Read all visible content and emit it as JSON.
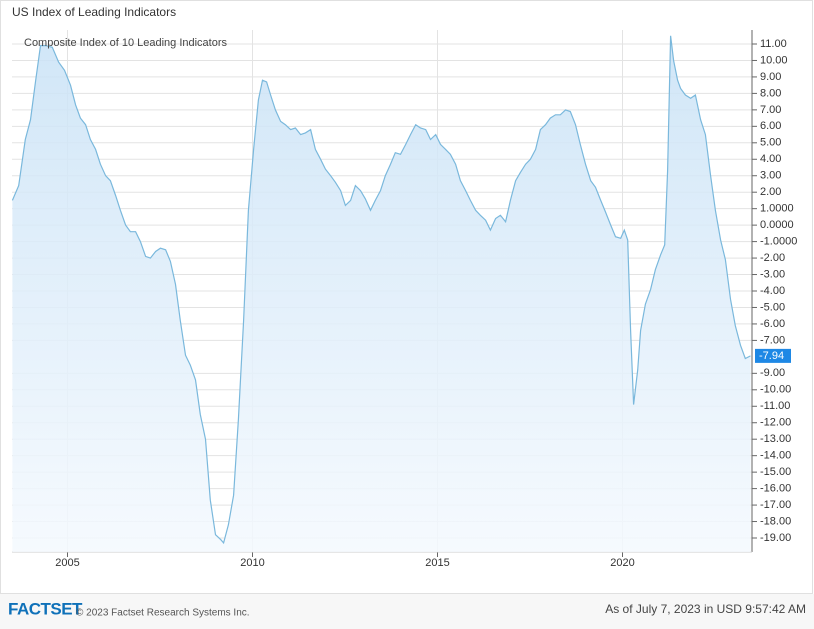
{
  "page_title": "US Index of Leading Indicators",
  "chart_data": {
    "type": "area",
    "subtitle": "Composite Index of 10 Leading Indicators",
    "x": [
      2003.51,
      2003.68,
      2003.86,
      2004.0,
      2004.14,
      2004.27,
      2004.41,
      2004.59,
      2004.76,
      2004.92,
      2005.08,
      2005.22,
      2005.35,
      2005.49,
      2005.62,
      2005.76,
      2005.89,
      2006.03,
      2006.16,
      2006.3,
      2006.43,
      2006.57,
      2006.7,
      2006.84,
      2006.97,
      2007.11,
      2007.24,
      2007.38,
      2007.51,
      2007.65,
      2007.78,
      2007.92,
      2008.05,
      2008.19,
      2008.32,
      2008.46,
      2008.59,
      2008.73,
      2008.86,
      2009.0,
      2009.14,
      2009.22,
      2009.35,
      2009.49,
      2009.62,
      2009.76,
      2009.89,
      2010.03,
      2010.16,
      2010.27,
      2010.38,
      2010.49,
      2010.62,
      2010.76,
      2010.89,
      2011.03,
      2011.16,
      2011.3,
      2011.43,
      2011.57,
      2011.7,
      2011.84,
      2011.97,
      2012.11,
      2012.24,
      2012.38,
      2012.51,
      2012.65,
      2012.78,
      2012.92,
      2013.05,
      2013.19,
      2013.32,
      2013.46,
      2013.59,
      2013.73,
      2013.86,
      2014.0,
      2014.14,
      2014.27,
      2014.41,
      2014.54,
      2014.68,
      2014.81,
      2014.95,
      2015.08,
      2015.22,
      2015.35,
      2015.49,
      2015.62,
      2015.76,
      2015.89,
      2016.03,
      2016.16,
      2016.3,
      2016.43,
      2016.57,
      2016.7,
      2016.84,
      2016.97,
      2017.11,
      2017.24,
      2017.38,
      2017.51,
      2017.65,
      2017.78,
      2017.92,
      2018.05,
      2018.19,
      2018.32,
      2018.46,
      2018.59,
      2018.73,
      2018.86,
      2019.0,
      2019.14,
      2019.27,
      2019.41,
      2019.54,
      2019.68,
      2019.81,
      2019.95,
      2020.05,
      2020.14,
      2020.22,
      2020.3,
      2020.41,
      2020.49,
      2020.62,
      2020.76,
      2020.89,
      2021.03,
      2021.14,
      2021.22,
      2021.3,
      2021.38,
      2021.49,
      2021.57,
      2021.7,
      2021.84,
      2021.97,
      2022.11,
      2022.24,
      2022.38,
      2022.51,
      2022.65,
      2022.78,
      2022.92,
      2023.05,
      2023.19,
      2023.32,
      2023.46
    ],
    "values": [
      1.5,
      2.4,
      5.2,
      6.4,
      8.8,
      10.9,
      10.9,
      10.8,
      9.9,
      9.4,
      8.5,
      7.3,
      6.5,
      6.1,
      5.2,
      4.6,
      3.7,
      3.0,
      2.7,
      1.8,
      0.9,
      0.0,
      -0.4,
      -0.4,
      -1.0,
      -1.9,
      -2.0,
      -1.6,
      -1.4,
      -1.5,
      -2.2,
      -3.6,
      -5.8,
      -7.9,
      -8.5,
      -9.4,
      -11.5,
      -13.0,
      -16.7,
      -18.8,
      -19.1,
      -19.3,
      -18.2,
      -16.4,
      -11.8,
      -5.8,
      0.9,
      4.6,
      7.6,
      8.8,
      8.7,
      7.9,
      7.0,
      6.3,
      6.1,
      5.8,
      5.9,
      5.5,
      5.6,
      5.8,
      4.6,
      4.0,
      3.4,
      3.0,
      2.6,
      2.1,
      1.2,
      1.5,
      2.4,
      2.1,
      1.6,
      0.9,
      1.5,
      2.1,
      3.0,
      3.7,
      4.4,
      4.3,
      4.9,
      5.5,
      6.1,
      5.9,
      5.8,
      5.2,
      5.5,
      4.9,
      4.6,
      4.3,
      3.7,
      2.7,
      2.1,
      1.5,
      0.9,
      0.6,
      0.3,
      -0.3,
      0.4,
      0.6,
      0.2,
      1.5,
      2.7,
      3.2,
      3.7,
      4.0,
      4.6,
      5.8,
      6.1,
      6.5,
      6.7,
      6.7,
      7.0,
      6.9,
      6.1,
      4.9,
      3.7,
      2.7,
      2.3,
      1.5,
      0.8,
      0.0,
      -0.7,
      -0.8,
      -0.3,
      -0.9,
      -6.4,
      -10.9,
      -8.8,
      -6.4,
      -4.8,
      -3.9,
      -2.7,
      -1.8,
      -1.2,
      3.3,
      11.5,
      10.0,
      8.8,
      8.3,
      7.9,
      7.7,
      7.9,
      6.4,
      5.5,
      3.0,
      0.9,
      -0.9,
      -2.1,
      -4.5,
      -6.1,
      -7.3,
      -8.1,
      -7.94
    ],
    "last_value_label": "-7.94",
    "color": "#7ab8dc",
    "xlim": [
      2003.5,
      2023.5
    ],
    "xticks": [
      2005,
      2010,
      2015,
      2020
    ],
    "ylim": [
      -19.85,
      11.85
    ],
    "yticks": [
      {
        "value": 11,
        "label": "11.00"
      },
      {
        "value": 10,
        "label": "10.00"
      },
      {
        "value": 9,
        "label": "9.00"
      },
      {
        "value": 8,
        "label": "8.00"
      },
      {
        "value": 7,
        "label": "7.00"
      },
      {
        "value": 6,
        "label": "6.00"
      },
      {
        "value": 5,
        "label": "5.00"
      },
      {
        "value": 4,
        "label": "4.00"
      },
      {
        "value": 3,
        "label": "3.00"
      },
      {
        "value": 2,
        "label": "2.00"
      },
      {
        "value": 1,
        "label": "1.0000"
      },
      {
        "value": 0,
        "label": "0.0000"
      },
      {
        "value": -1,
        "label": "-1.0000"
      },
      {
        "value": -2,
        "label": "-2.00"
      },
      {
        "value": -3,
        "label": "-3.00"
      },
      {
        "value": -4,
        "label": "-4.00"
      },
      {
        "value": -5,
        "label": "-5.00"
      },
      {
        "value": -6,
        "label": "-6.00"
      },
      {
        "value": -7,
        "label": "-7.00"
      },
      {
        "value": -9,
        "label": "-9.00"
      },
      {
        "value": -10,
        "label": "-10.00"
      },
      {
        "value": -11,
        "label": "-11.00"
      },
      {
        "value": -12,
        "label": "-12.00"
      },
      {
        "value": -13,
        "label": "-13.00"
      },
      {
        "value": -14,
        "label": "-14.00"
      },
      {
        "value": -15,
        "label": "-15.00"
      },
      {
        "value": -16,
        "label": "-16.00"
      },
      {
        "value": -17,
        "label": "-17.00"
      },
      {
        "value": -18,
        "label": "-18.00"
      },
      {
        "value": -19,
        "label": "-19.00"
      }
    ],
    "grid": true
  },
  "footer": {
    "brand": "FACTSET",
    "copyright": "© 2023 Factset Research Systems Inc.",
    "timestamp": "As of July 7, 2023 in USD 9:57:42 AM"
  }
}
